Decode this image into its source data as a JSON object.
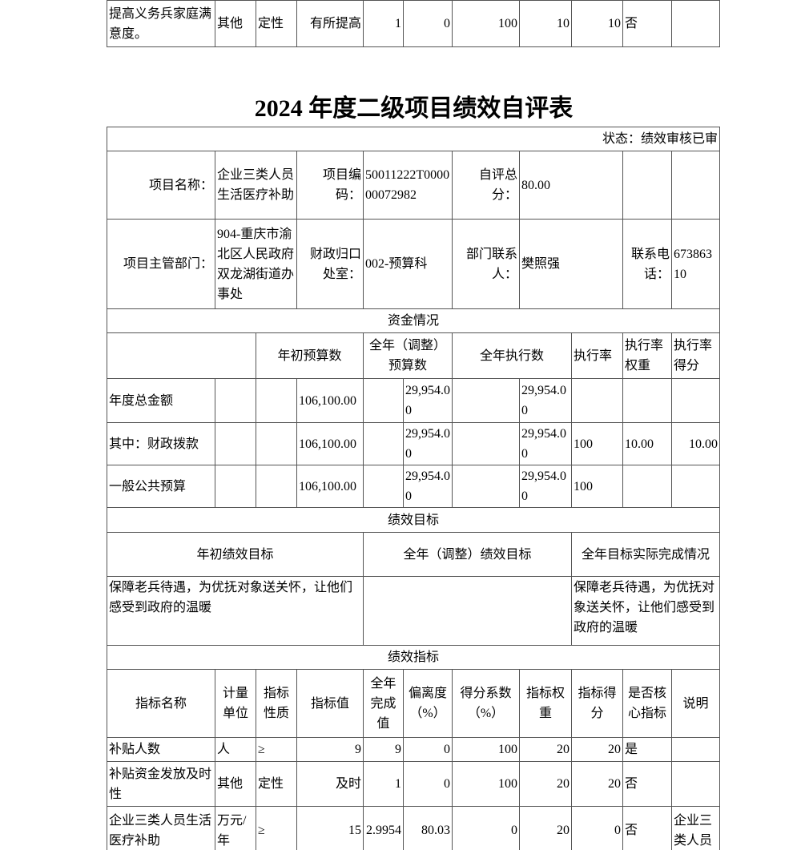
{
  "prev_row": [
    "提高义务兵家庭满意度。",
    "其他",
    "定性",
    "有所提高",
    "1",
    "0",
    "100",
    "10",
    "10",
    "否",
    ""
  ],
  "title": "2024 年度二级项目绩效自评表",
  "status": "状态：绩效审核已审",
  "info": {
    "name_label": "项目名称：",
    "name": "企业三类人员生活医疗补助",
    "code_label": "项目编码：",
    "code": "50011222T000000072982",
    "score_label": "自评总分：",
    "score": "80.00",
    "dept_label": "项目主管部门：",
    "dept": "904-重庆市渝北区人民政府双龙湖街道办事处",
    "office_label": "财政归口处室：",
    "office": "002-预算科",
    "contact_label": "部门联系人：",
    "contact": "樊照强",
    "phone_label": "联系电话：",
    "phone": "67386310"
  },
  "funds": {
    "section": "资金情况",
    "headers": [
      "年初预算数",
      "全年（调整）预算数",
      "全年执行数",
      "执行率",
      "执行率权重",
      "执行率得分"
    ],
    "rows": [
      [
        "年度总金额",
        "106,100.00",
        "29,954.00",
        "29,954.00",
        "",
        "",
        ""
      ],
      [
        "其中：财政拨款",
        "106,100.00",
        "29,954.00",
        "29,954.00",
        "100",
        "10.00",
        "10.00"
      ],
      [
        "一般公共预算",
        "106,100.00",
        "29,954.00",
        "29,954.00",
        "100",
        "",
        ""
      ]
    ]
  },
  "goals": {
    "section": "绩效目标",
    "headers": [
      "年初绩效目标",
      "全年（调整）绩效目标",
      "全年目标实际完成情况"
    ],
    "values": [
      "保障老兵待遇，为优抚对象送关怀，让他们感受到政府的温暖",
      "",
      "保障老兵待遇，为优抚对象送关怀，让他们感受到政府的温暖"
    ]
  },
  "indicators": {
    "section": "绩效指标",
    "headers": [
      "指标名称",
      "计量单位",
      "指标性质",
      "指标值",
      "全年完成值",
      "偏离度（%）",
      "得分系数（%）",
      "指标权重",
      "指标得分",
      "是否核心指标",
      "说明"
    ],
    "rows": [
      [
        "补贴人数",
        "人",
        "≥",
        "9",
        "9",
        "0",
        "100",
        "20",
        "20",
        "是",
        ""
      ],
      [
        "补贴资金发放及时性",
        "其他",
        "定性",
        "及时",
        "1",
        "0",
        "100",
        "20",
        "20",
        "否",
        ""
      ],
      [
        "企业三类人员生活医疗补助",
        "万元/年",
        "≥",
        "15",
        "2.9954",
        "80.03",
        "0",
        "20",
        "0",
        "否",
        "企业三类人员"
      ]
    ]
  }
}
